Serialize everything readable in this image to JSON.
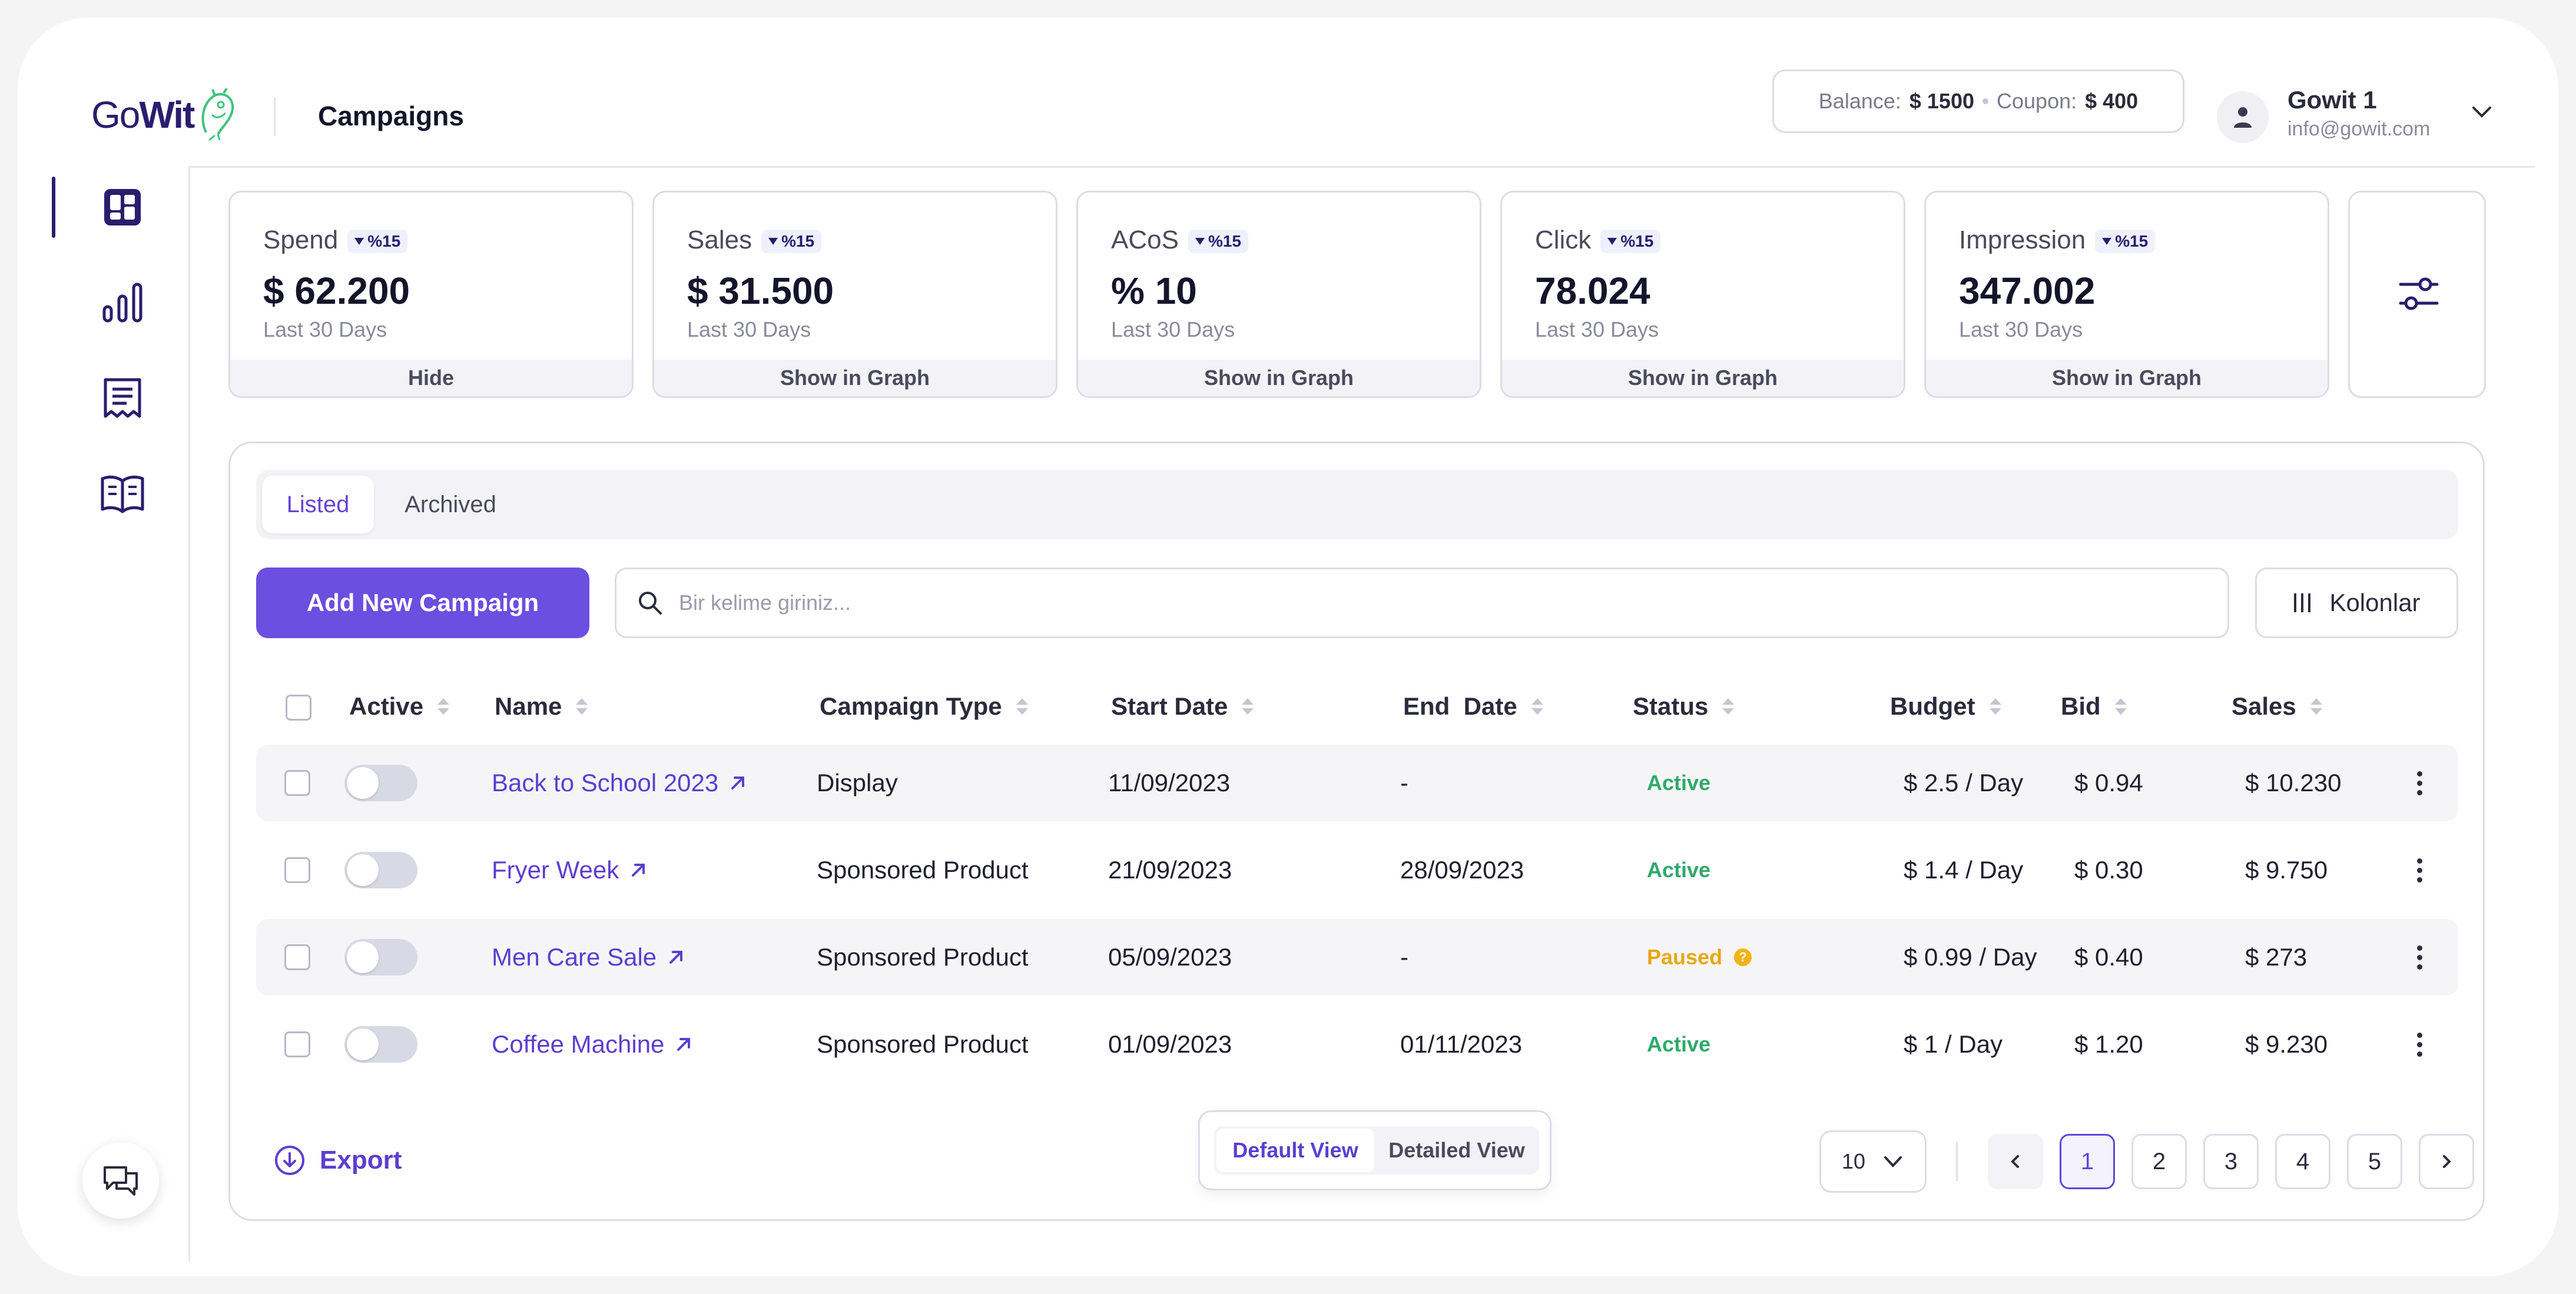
{
  "header": {
    "logo_go": "Go",
    "logo_wit": "Wit",
    "page_title": "Campaigns",
    "balance_label": "Balance:",
    "balance_value": "$ 1500",
    "coupon_label": "Coupon:",
    "coupon_value": "$ 400",
    "user_name": "Gowit 1",
    "user_email": "info@gowit.com"
  },
  "sidebar": {
    "items": [
      {
        "icon": "dashboard-icon",
        "active": true
      },
      {
        "icon": "bar-chart-icon",
        "active": false
      },
      {
        "icon": "receipt-icon",
        "active": false
      },
      {
        "icon": "book-icon",
        "active": false
      }
    ],
    "chat_icon": "chat-support-icon"
  },
  "metrics": [
    {
      "label": "Spend",
      "change": "%15",
      "value": "$ 62.200",
      "period": "Last 30 Days",
      "action": "Hide"
    },
    {
      "label": "Sales",
      "change": "%15",
      "value": "$ 31.500",
      "period": "Last 30 Days",
      "action": "Show in Graph"
    },
    {
      "label": "ACoS",
      "change": "%15",
      "value": "% 10",
      "period": "Last 30 Days",
      "action": "Show in Graph"
    },
    {
      "label": "Click",
      "change": "%15",
      "value": "78.024",
      "period": "Last 30 Days",
      "action": "Show in Graph"
    },
    {
      "label": "Impression",
      "change": "%15",
      "value": "347.002",
      "period": "Last 30 Days",
      "action": "Show in Graph"
    }
  ],
  "tabs": [
    "Listed",
    "Archived"
  ],
  "toolbar": {
    "add_label": "Add New Campaign",
    "search_placeholder": "Bir kelime giriniz...",
    "columns_label": "Kolonlar"
  },
  "table": {
    "headers": [
      "Active",
      "Name",
      "Campaign Type",
      "Start Date",
      "End  Date",
      "Status",
      "Budget",
      "Bid",
      "Sales"
    ],
    "rows": [
      {
        "name": "Back to School 2023",
        "type": "Display",
        "start": "11/09/2023",
        "end": "-",
        "status": "Active",
        "budget": "$ 2.5 / Day",
        "bid": "$ 0.94",
        "sales": "$ 10.230"
      },
      {
        "name": "Fryer Week",
        "type": "Sponsored Product",
        "start": "21/09/2023",
        "end": "28/09/2023",
        "status": "Active",
        "budget": "$ 1.4 / Day",
        "bid": "$ 0.30",
        "sales": "$ 9.750"
      },
      {
        "name": "Men Care Sale",
        "type": "Sponsored Product",
        "start": "05/09/2023",
        "end": "-",
        "status": "Paused",
        "budget": "$ 0.99 / Day",
        "bid": "$ 0.40",
        "sales": "$ 273"
      },
      {
        "name": "Coffee Machine",
        "type": "Sponsored Product",
        "start": "01/09/2023",
        "end": "01/11/2023",
        "status": "Active",
        "budget": "$ 1 / Day",
        "bid": "$ 1.20",
        "sales": "$ 9.230"
      }
    ]
  },
  "footer": {
    "export_label": "Export",
    "view_default": "Default View",
    "view_detailed": "Detailed View",
    "page_size": "10",
    "pages": [
      "1",
      "2",
      "3",
      "4",
      "5"
    ],
    "current_page": "1"
  },
  "colors": {
    "accent": "#6a4fe0",
    "active": "#2fa86a",
    "paused": "#e8a710",
    "brand": "#2a1d6e"
  }
}
